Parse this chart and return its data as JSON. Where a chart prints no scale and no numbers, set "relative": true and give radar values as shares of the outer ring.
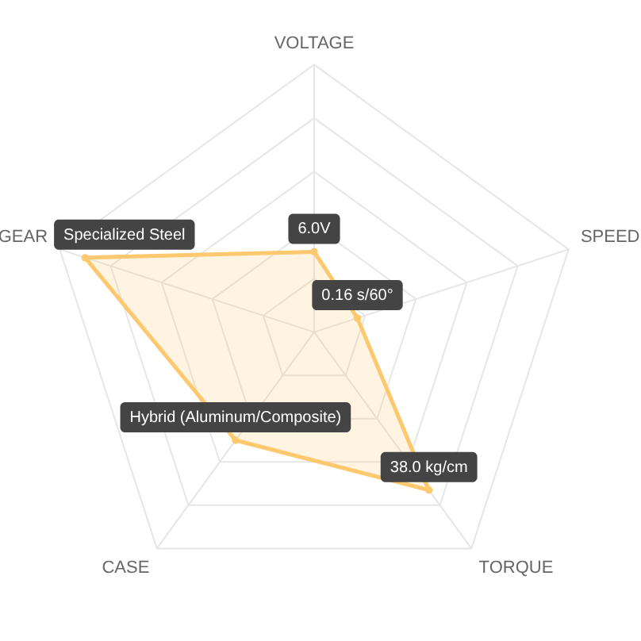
{
  "chart_data": {
    "type": "radar",
    "relative": true,
    "categories": [
      "VOLTAGE",
      "SPEED",
      "TORQUE",
      "CASE",
      "GEAR"
    ],
    "series": [
      {
        "color": "#fdc86e",
        "values": [
          0.3,
          0.17,
          0.73,
          0.5,
          0.9
        ]
      }
    ],
    "annotations": [
      "6.0V",
      "0.16 s/60°",
      "38.0 kg/cm",
      "Hybrid (Aluminum/Composite)",
      "Specialized Steel"
    ],
    "grid": true,
    "marker": "circle"
  }
}
